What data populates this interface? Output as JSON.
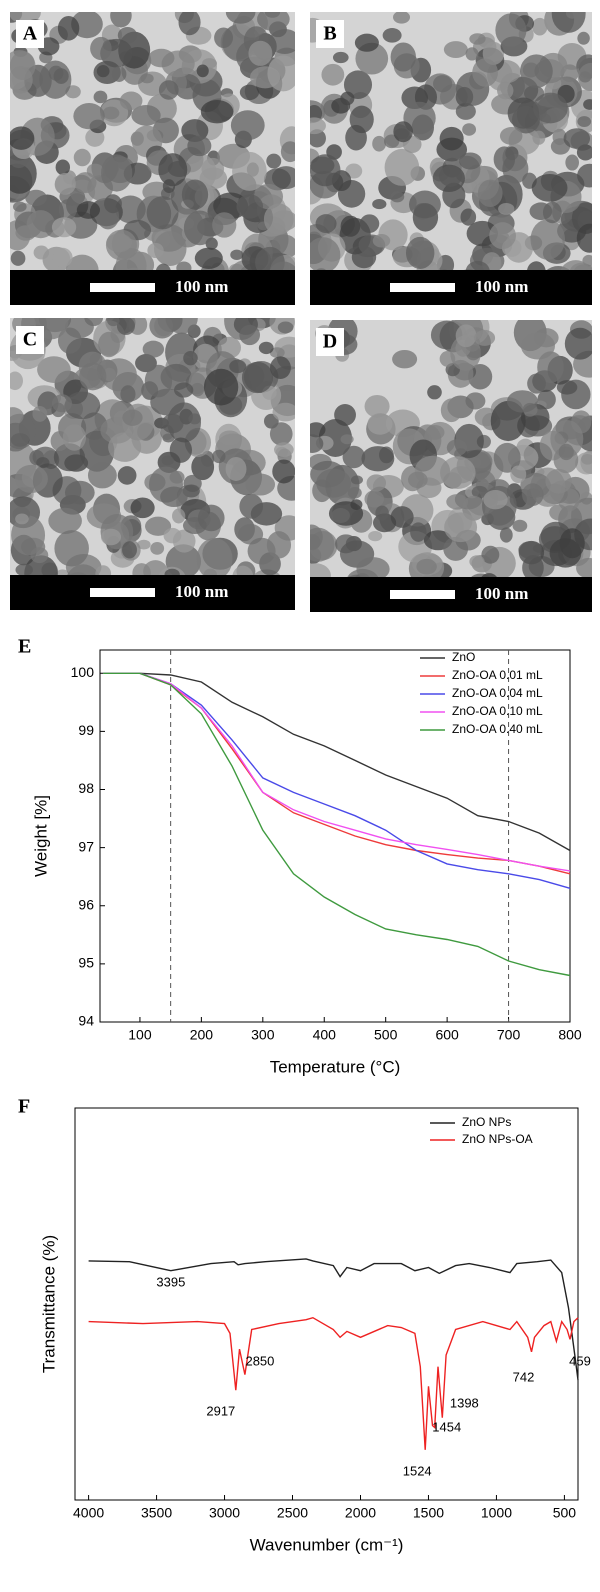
{
  "panels": [
    {
      "label": "A",
      "scale_bar": "100 nm"
    },
    {
      "label": "B",
      "scale_bar": "100 nm"
    },
    {
      "label": "C",
      "scale_bar": "100 nm"
    },
    {
      "label": "D",
      "scale_bar": "100 nm"
    }
  ],
  "chart_data": [
    {
      "type": "line",
      "panel_label": "E",
      "x_label": "Temperature (°C)",
      "y_label": "Weight [%]",
      "x": [
        40,
        100,
        150,
        200,
        250,
        300,
        350,
        400,
        450,
        500,
        550,
        600,
        650,
        700,
        750,
        800
      ],
      "series": [
        {
          "name": "ZnO",
          "color": "#333333",
          "values": [
            100,
            100,
            99.97,
            99.85,
            99.5,
            99.25,
            98.95,
            98.75,
            98.5,
            98.25,
            98.05,
            97.85,
            97.55,
            97.45,
            97.25,
            96.95
          ]
        },
        {
          "name": "ZnO-OA  0.01 mL",
          "color": "#ee3b3b",
          "values": [
            100,
            100,
            99.8,
            99.4,
            98.7,
            97.95,
            97.6,
            97.4,
            97.2,
            97.05,
            96.95,
            96.88,
            96.82,
            96.78,
            96.68,
            96.55
          ]
        },
        {
          "name": "ZnO-OA  0.04 mL",
          "color": "#4a4ae8",
          "values": [
            100,
            100,
            99.82,
            99.45,
            98.85,
            98.2,
            97.95,
            97.75,
            97.55,
            97.3,
            96.95,
            96.72,
            96.62,
            96.55,
            96.45,
            96.3
          ]
        },
        {
          "name": "ZnO-OA  0.10 mL",
          "color": "#f050f0",
          "values": [
            100,
            100,
            99.82,
            99.4,
            98.75,
            97.95,
            97.65,
            97.45,
            97.3,
            97.15,
            97.05,
            96.97,
            96.88,
            96.78,
            96.68,
            96.6
          ]
        },
        {
          "name": "ZnO-OA  0.40 mL",
          "color": "#3f9a3f",
          "values": [
            100,
            100,
            99.8,
            99.3,
            98.4,
            97.3,
            96.55,
            96.15,
            95.85,
            95.6,
            95.5,
            95.42,
            95.3,
            95.05,
            94.9,
            94.8
          ]
        }
      ],
      "xlim": [
        35,
        800
      ],
      "xticks": [
        100,
        200,
        300,
        400,
        500,
        600,
        700,
        800
      ],
      "ylim": [
        94,
        100.4
      ],
      "yticks": [
        94,
        95,
        96,
        97,
        98,
        99,
        100
      ],
      "vlines": [
        150,
        700
      ],
      "legend": "upper right"
    },
    {
      "type": "line",
      "panel_label": "F",
      "x_label": "Wavenumber (cm⁻¹)",
      "y_label": "Transmittance (%)",
      "x": [
        4000,
        3700,
        3395,
        3100,
        2930,
        2900,
        2850,
        2700,
        2400,
        2350,
        2200,
        2150,
        2100,
        2000,
        1900,
        1700,
        1600,
        1500,
        1420,
        1300,
        1200,
        1050,
        900,
        850,
        700,
        600,
        520,
        470,
        420,
        400
      ],
      "series": [
        {
          "name": "ZnO NPs",
          "color": "#222222",
          "values": [
            61,
            60.8,
            58.5,
            60.3,
            60.8,
            60,
            60.3,
            60.8,
            61.5,
            61,
            59.8,
            57,
            59.3,
            58.5,
            60.3,
            60.3,
            58.5,
            59.3,
            57.8,
            59.8,
            60.3,
            59.3,
            58,
            60.3,
            60.8,
            61.2,
            58,
            49,
            36,
            30.6
          ]
        },
        {
          "name": "ZnO NPs-OA",
          "color": "#ee2222",
          "x": [
            4000,
            3600,
            3200,
            3000,
            2960,
            2917,
            2890,
            2850,
            2800,
            2600,
            2400,
            2350,
            2200,
            2150,
            2100,
            2000,
            1800,
            1700,
            1600,
            1560,
            1524,
            1500,
            1470,
            1454,
            1430,
            1398,
            1370,
            1300,
            1100,
            1000,
            900,
            850,
            770,
            742,
            720,
            650,
            600,
            559,
            520,
            480,
            459,
            430,
            400
          ],
          "values": [
            45.5,
            45,
            45.5,
            45,
            42.5,
            28,
            38.5,
            32,
            43.5,
            45,
            46,
            46.5,
            43.5,
            41.5,
            43,
            41.5,
            44.5,
            44,
            42.5,
            34,
            12.8,
            29,
            19,
            18.5,
            34,
            21,
            37,
            43.5,
            45.5,
            44.5,
            43.5,
            45.5,
            41.5,
            37.8,
            41.5,
            44.5,
            45.5,
            40.5,
            45.5,
            43.5,
            41,
            45.5,
            46.5
          ]
        }
      ],
      "xlim": [
        4100,
        400
      ],
      "xticks": [
        4000,
        3500,
        3000,
        2500,
        2000,
        1500,
        1000,
        500
      ],
      "ylim": [
        0,
        100
      ],
      "peaks": [
        3395,
        2917,
        2850,
        1524,
        1454,
        1398,
        742,
        459
      ],
      "legend": "upper right"
    }
  ]
}
